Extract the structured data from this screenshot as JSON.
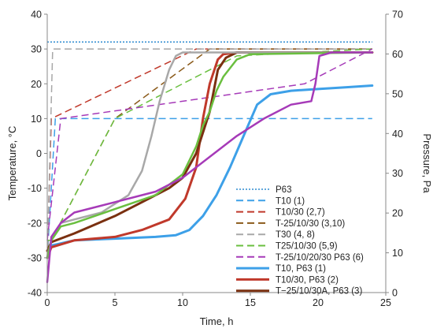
{
  "chart_data": {
    "type": "line",
    "title": "",
    "xlabel": "Time, h",
    "ylabel_left": "Temperature, °C",
    "ylabel_right": "Pressure, Pa",
    "xlim": [
      0,
      25
    ],
    "ylim_left": [
      -40,
      40
    ],
    "ylim_right": [
      0,
      70
    ],
    "xticks": [
      0,
      5,
      10,
      15,
      20,
      25
    ],
    "yticks_left": [
      -40,
      -30,
      -20,
      -10,
      0,
      10,
      20,
      30,
      40
    ],
    "yticks_right": [
      0,
      10,
      20,
      30,
      40,
      50,
      60,
      70
    ],
    "grid": false,
    "legend_position": "right-inside",
    "colors": {
      "P63": "#2e8bd0",
      "T10": "#3da0e8",
      "T10_30": "#c0392b",
      "T_25_10_30": "#8b5a1a",
      "T30": "#a8a8a8",
      "T25_10_30": "#6abf3f",
      "T_25_10_20_30": "#a63ab8",
      "T10_P63": "#3da0e8",
      "T10_30_P63": "#c0392b",
      "T_25_10_30A_P63": "#7a3010"
    },
    "series": [
      {
        "name": "P63",
        "color_key": "P63",
        "style": "dotted",
        "width": 1.5,
        "axis": "left",
        "x": [
          0,
          24
        ],
        "y": [
          32,
          32
        ]
      },
      {
        "name": "T10 (1)",
        "color_key": "T10",
        "style": "dashed",
        "width": 1.5,
        "axis": "left",
        "x": [
          0,
          0.6,
          24
        ],
        "y": [
          -30,
          10,
          10
        ]
      },
      {
        "name": "T10/30 (2,7)",
        "color_key": "T10_30",
        "style": "dashed",
        "width": 1.5,
        "axis": "left",
        "x": [
          0,
          0.3,
          11,
          24
        ],
        "y": [
          -30,
          10,
          30,
          30
        ]
      },
      {
        "name": "T-25/10/30 (3,10)",
        "color_key": "T_25_10_30",
        "style": "dashed",
        "width": 1.5,
        "axis": "left",
        "x": [
          0,
          0.3,
          5,
          12,
          24
        ],
        "y": [
          -25,
          -25,
          10,
          30,
          30
        ]
      },
      {
        "name": "T30 (4, 8)",
        "color_key": "T30",
        "style": "dashed",
        "width": 1.5,
        "axis": "left",
        "x": [
          0,
          0.4,
          24
        ],
        "y": [
          -30,
          30,
          30
        ]
      },
      {
        "name": "T25/10/30 (5,9)",
        "color_key": "T25_10_30",
        "style": "dashed",
        "width": 1.5,
        "axis": "left",
        "x": [
          0,
          0.3,
          5,
          14,
          24
        ],
        "y": [
          -25,
          -25,
          10,
          28,
          30
        ]
      },
      {
        "name": "T-25/10/20/30 P63 (6)",
        "color_key": "T_25_10_20_30",
        "style": "dashed",
        "width": 1.5,
        "axis": "left",
        "x": [
          0,
          1,
          19,
          24
        ],
        "y": [
          -25,
          10,
          20,
          30
        ]
      },
      {
        "name": "T10, P63 (1)",
        "color_key": "T10_P63",
        "style": "solid",
        "width": 3,
        "axis": "left",
        "x": [
          0,
          0.3,
          2,
          5,
          8,
          9.5,
          10.5,
          11.5,
          12.5,
          13.5,
          14.5,
          15.5,
          16.5,
          18,
          20,
          22,
          24
        ],
        "y": [
          -30,
          -26.5,
          -25,
          -24.5,
          -24,
          -23.5,
          -22,
          -18,
          -12,
          -4,
          5,
          14,
          17,
          18,
          18.5,
          19,
          19.5
        ]
      },
      {
        "name": "T10/30, P63 (2)",
        "color_key": "T10_30_P63",
        "style": "solid",
        "width": 3,
        "axis": "left",
        "x": [
          0,
          0.3,
          2,
          5,
          7,
          9,
          10.2,
          11,
          11.5,
          12,
          12.6,
          13,
          14,
          24
        ],
        "y": [
          -30,
          -27,
          -25,
          -24,
          -22,
          -19,
          -13,
          -4,
          10,
          20,
          27,
          28.5,
          29,
          29
        ]
      },
      {
        "name": "T−25/10/30A, P63  (3)",
        "color_key": "T_25_10_30A_P63",
        "style": "solid",
        "width": 3,
        "axis": "left",
        "x": [
          0,
          0.3,
          2,
          5,
          7,
          9,
          10,
          11,
          12,
          12.6,
          13.2,
          14,
          24
        ],
        "y": [
          -28,
          -25.5,
          -23,
          -18,
          -14,
          -10,
          -7,
          0,
          12,
          24,
          27.5,
          29,
          29
        ]
      },
      {
        "name": "T30 (4, 8) measured",
        "color_key": "T30",
        "style": "solid",
        "width": 2.5,
        "axis": "left",
        "in_legend": false,
        "x": [
          0,
          0.3,
          1,
          2,
          4,
          6,
          7,
          7.7,
          8.3,
          9,
          9.5,
          10,
          11,
          24
        ],
        "y": [
          -30,
          -25,
          -20,
          -19,
          -17,
          -12,
          -5,
          5,
          15,
          24,
          28,
          29,
          29,
          29
        ]
      },
      {
        "name": "T25/10/30 (5,9) measured",
        "color_key": "T25_10_30",
        "style": "solid",
        "width": 2.5,
        "axis": "left",
        "in_legend": false,
        "x": [
          0,
          0.3,
          1,
          2,
          5,
          8,
          10,
          11,
          11.5,
          12,
          12.5,
          13,
          14,
          15,
          24
        ],
        "y": [
          -30,
          -25,
          -21,
          -20,
          -16,
          -12,
          -6,
          2,
          8,
          12,
          18,
          22,
          27,
          28.5,
          29
        ]
      },
      {
        "name": "T-25/10/20/30 P63 (6) measured",
        "color_key": "T_25_10_20_30",
        "style": "solid",
        "width": 2.5,
        "axis": "left",
        "in_legend": false,
        "x": [
          0,
          0.3,
          1,
          2,
          5,
          8,
          10,
          12,
          14,
          16,
          18,
          19.5,
          19.8,
          20.1,
          21,
          24
        ],
        "y": [
          -37,
          -24,
          -20,
          -17,
          -14,
          -11,
          -7,
          -1,
          5,
          10,
          14,
          15,
          20,
          28,
          29,
          29
        ]
      }
    ]
  },
  "legend": [
    {
      "label": "P63",
      "color_key": "P63",
      "style": "dotted",
      "width": 1.5
    },
    {
      "label": "T10 (1)",
      "color_key": "T10",
      "style": "dashed",
      "width": 2
    },
    {
      "label": "T10/30 (2,7)",
      "color_key": "T10_30",
      "style": "dashed",
      "width": 2
    },
    {
      "label": "T-25/10/30 (3,10)",
      "color_key": "T_25_10_30",
      "style": "dashed",
      "width": 2
    },
    {
      "label": "T30 (4, 8)",
      "color_key": "T30",
      "style": "dashed",
      "width": 2
    },
    {
      "label": "T25/10/30 (5,9)",
      "color_key": "T25_10_30",
      "style": "dashed",
      "width": 2
    },
    {
      "label": "T-25/10/20/30 P63 (6)",
      "color_key": "T_25_10_20_30",
      "style": "dashed",
      "width": 2
    },
    {
      "label": "T10, P63 (1)",
      "color_key": "T10_P63",
      "style": "solid",
      "width": 3
    },
    {
      "label": "T10/30, P63 (2)",
      "color_key": "T10_30_P63",
      "style": "solid",
      "width": 3
    },
    {
      "label": "T−25/10/30A, P63  (3)",
      "color_key": "T_25_10_30A_P63",
      "style": "solid",
      "width": 3
    }
  ]
}
